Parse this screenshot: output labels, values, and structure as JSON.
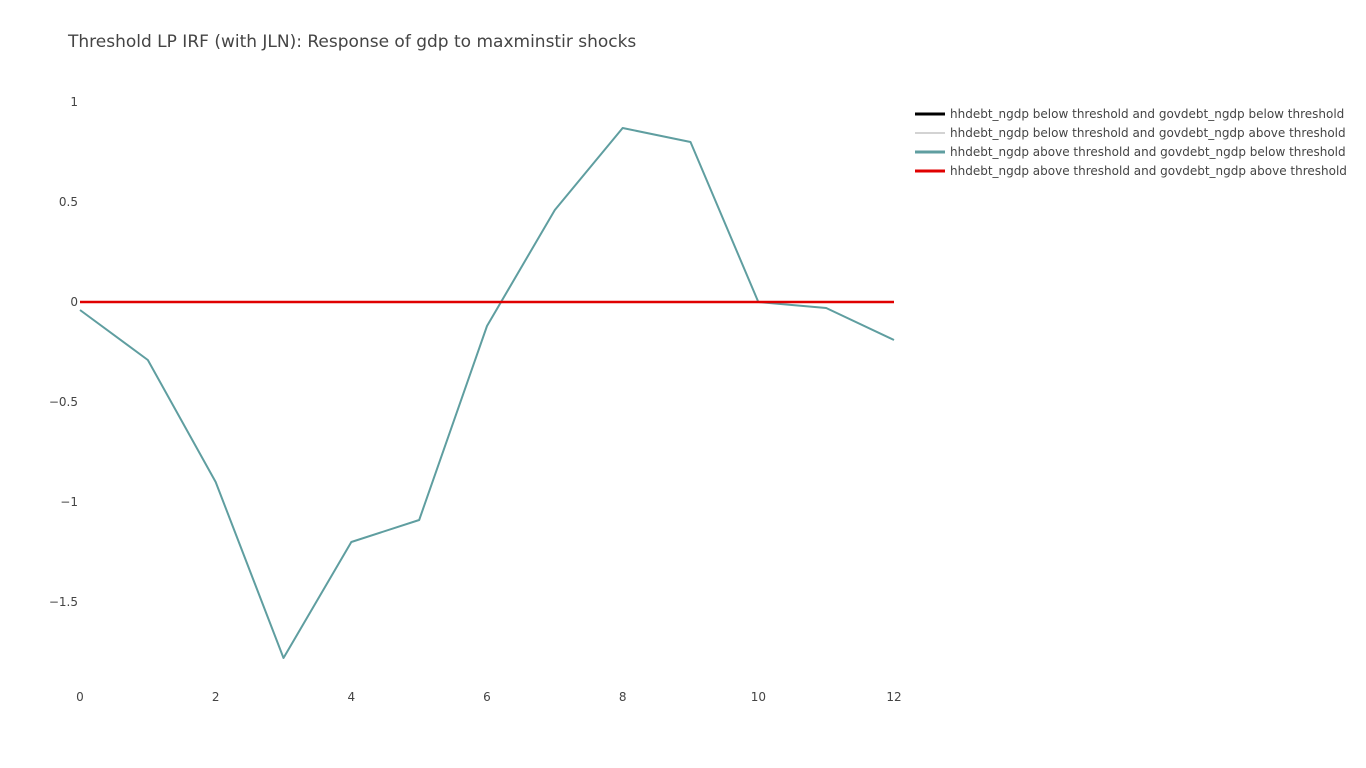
{
  "chart_data": {
    "type": "line",
    "title": "Threshold LP IRF (with JLN): Response of gdp to maxminstir shocks",
    "xlabel": "",
    "ylabel": "",
    "x": [
      0,
      1,
      2,
      3,
      4,
      5,
      6,
      7,
      8,
      9,
      10,
      11,
      12
    ],
    "xlim": [
      0,
      12
    ],
    "ylim": [
      -1.95,
      1.1
    ],
    "x_ticks": [
      0,
      2,
      4,
      6,
      8,
      10,
      12
    ],
    "x_tick_labels": [
      "0",
      "2",
      "4",
      "6",
      "8",
      "10",
      "12"
    ],
    "y_ticks": [
      1,
      0.5,
      0,
      -0.5,
      -1,
      -1.5
    ],
    "y_tick_labels": [
      "1",
      "0.5",
      "0",
      "−0.5",
      "−1",
      "−1.5"
    ],
    "grid": false,
    "legend_position": "top-right",
    "series": [
      {
        "name": "hhdebt_ngdp below threshold and govdebt_ngdp below threshold",
        "color": "#000000",
        "values": [
          0,
          0,
          0,
          0,
          0,
          0,
          0,
          0,
          0,
          0,
          0,
          0,
          0
        ]
      },
      {
        "name": "hhdebt_ngdp below threshold and govdebt_ngdp above threshold",
        "color": "#d3d3d3",
        "values": [
          0,
          0,
          0,
          0,
          0,
          0,
          0,
          0,
          0,
          0,
          0,
          0,
          0
        ]
      },
      {
        "name": "hhdebt_ngdp above threshold and govdebt_ngdp below threshold",
        "color": "#5f9ea0",
        "values": [
          -0.04,
          -0.29,
          -0.9,
          -1.78,
          -1.2,
          -1.09,
          -0.12,
          0.46,
          0.87,
          0.8,
          0.0,
          -0.03,
          -0.19
        ]
      },
      {
        "name": "hhdebt_ngdp above threshold and govdebt_ngdp above threshold",
        "color": "#e00000",
        "values": [
          0,
          0,
          0,
          0,
          0,
          0,
          0,
          0,
          0,
          0,
          0,
          0,
          0
        ]
      }
    ]
  }
}
